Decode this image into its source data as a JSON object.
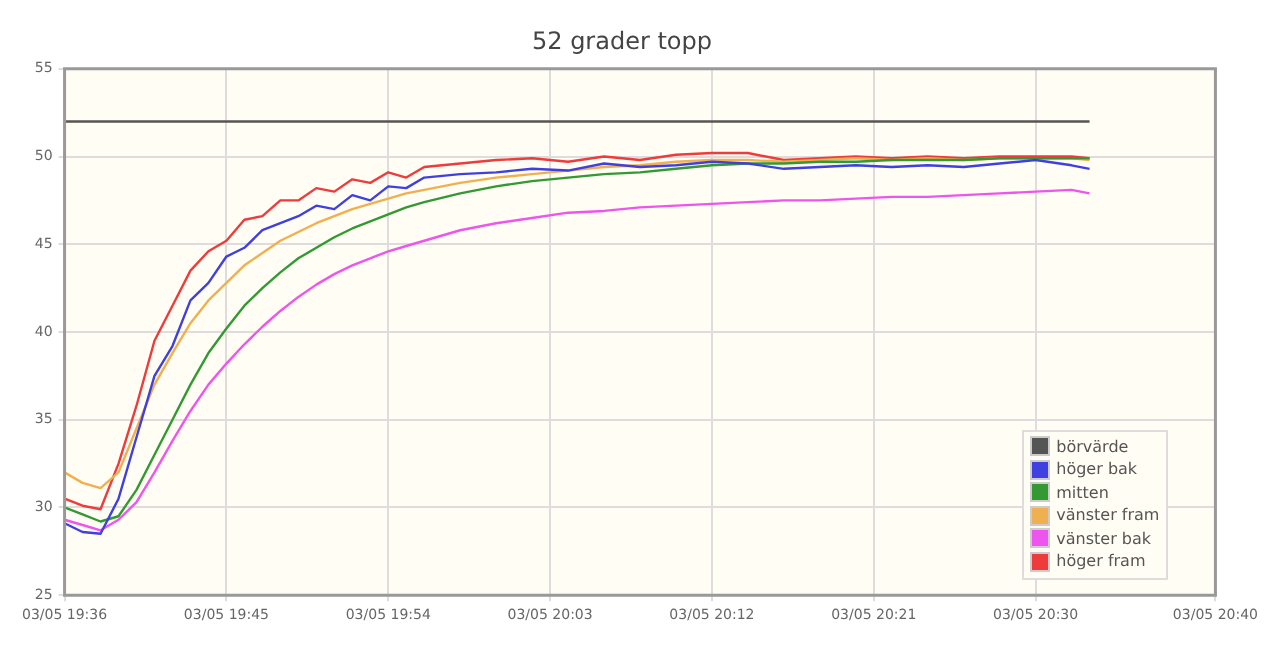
{
  "chart_data": {
    "type": "line",
    "title": "52 grader topp",
    "x": [
      "--05-03T19:36",
      "--05-03T19:37",
      "--05-03T19:38",
      "--05-03T19:39",
      "--05-03T19:40",
      "--05-03T19:41",
      "--05-03T19:42",
      "--05-03T19:43",
      "--05-03T19:44",
      "--05-03T19:45",
      "--05-03T19:46",
      "--05-03T19:47",
      "--05-03T19:48",
      "--05-03T19:49",
      "--05-03T19:50",
      "--05-03T19:51",
      "--05-03T19:52",
      "--05-03T19:53",
      "--05-03T19:54",
      "--05-03T19:55",
      "--05-03T19:56",
      "--05-03T19:58",
      "--05-03T20:00",
      "--05-03T20:02",
      "--05-03T20:04",
      "--05-03T20:06",
      "--05-03T20:08",
      "--05-03T20:10",
      "--05-03T20:12",
      "--05-03T20:14",
      "--05-03T20:16",
      "--05-03T20:18",
      "--05-03T20:20",
      "--05-03T20:22",
      "--05-03T20:24",
      "--05-03T20:26",
      "--05-03T20:28",
      "--05-03T20:30",
      "--05-03T20:32",
      "--05-03T20:33"
    ],
    "series": [
      {
        "name": "börvärde",
        "color": "#555555",
        "x": [
          "--05-03T19:36",
          "--05-03T20:33"
        ],
        "values": [
          52,
          52
        ]
      },
      {
        "name": "höger bak",
        "color": "#4040e0",
        "values": [
          29.1,
          28.6,
          28.5,
          30.5,
          34.0,
          37.5,
          39.2,
          41.8,
          42.8,
          44.3,
          44.8,
          45.8,
          46.2,
          46.6,
          47.2,
          47.0,
          47.8,
          47.5,
          48.3,
          48.2,
          48.8,
          49.0,
          49.1,
          49.3,
          49.2,
          49.6,
          49.4,
          49.5,
          49.7,
          49.6,
          49.3,
          49.4,
          49.5,
          49.4,
          49.5,
          49.4,
          49.6,
          49.8,
          49.5,
          49.3
        ]
      },
      {
        "name": "mitten",
        "color": "#339933",
        "values": [
          30.0,
          29.6,
          29.2,
          29.5,
          31.0,
          33.0,
          35.0,
          37.0,
          38.8,
          40.2,
          41.5,
          42.5,
          43.4,
          44.2,
          44.8,
          45.4,
          45.9,
          46.3,
          46.7,
          47.1,
          47.4,
          47.9,
          48.3,
          48.6,
          48.8,
          49.0,
          49.1,
          49.3,
          49.5,
          49.6,
          49.6,
          49.7,
          49.7,
          49.8,
          49.8,
          49.8,
          49.9,
          49.9,
          49.9,
          49.9
        ]
      },
      {
        "name": "vänster fram",
        "color": "#f0b050",
        "values": [
          32.0,
          31.4,
          31.1,
          32.0,
          34.5,
          37.0,
          38.8,
          40.5,
          41.8,
          42.8,
          43.8,
          44.5,
          45.2,
          45.7,
          46.2,
          46.6,
          47.0,
          47.3,
          47.6,
          47.9,
          48.1,
          48.5,
          48.8,
          49.0,
          49.2,
          49.4,
          49.5,
          49.7,
          49.8,
          49.8,
          49.7,
          49.8,
          49.9,
          49.8,
          49.9,
          49.8,
          49.9,
          49.9,
          49.9,
          49.8
        ]
      },
      {
        "name": "vänster bak",
        "color": "#ee55ee",
        "values": [
          29.3,
          29.0,
          28.7,
          29.3,
          30.3,
          32.0,
          33.8,
          35.5,
          37.0,
          38.2,
          39.3,
          40.3,
          41.2,
          42.0,
          42.7,
          43.3,
          43.8,
          44.2,
          44.6,
          44.9,
          45.2,
          45.8,
          46.2,
          46.5,
          46.8,
          46.9,
          47.1,
          47.2,
          47.3,
          47.4,
          47.5,
          47.5,
          47.6,
          47.7,
          47.7,
          47.8,
          47.9,
          48.0,
          48.1,
          47.9
        ]
      },
      {
        "name": "höger fram",
        "color": "#ee3b3b",
        "values": [
          30.5,
          30.1,
          29.9,
          32.5,
          35.8,
          39.5,
          41.5,
          43.5,
          44.6,
          45.2,
          46.4,
          46.6,
          47.5,
          47.5,
          48.2,
          48.0,
          48.7,
          48.5,
          49.1,
          48.8,
          49.4,
          49.6,
          49.8,
          49.9,
          49.7,
          50.0,
          49.8,
          50.1,
          50.2,
          50.2,
          49.8,
          49.9,
          50.0,
          49.9,
          50.0,
          49.9,
          50.0,
          50.0,
          50.0,
          49.9
        ]
      }
    ],
    "xlim": [
      "--05-03T19:36",
      "--05-03T20:40"
    ],
    "xticks": [
      {
        "value": "--05-03T19:36",
        "label": "03/05 19:36"
      },
      {
        "value": "--05-03T19:45",
        "label": "03/05 19:45"
      },
      {
        "value": "--05-03T19:54",
        "label": "03/05 19:54"
      },
      {
        "value": "--05-03T20:03",
        "label": "03/05 20:03"
      },
      {
        "value": "--05-03T20:12",
        "label": "03/05 20:12"
      },
      {
        "value": "--05-03T20:21",
        "label": "03/05 20:21"
      },
      {
        "value": "--05-03T20:30",
        "label": "03/05 20:30"
      },
      {
        "value": "--05-03T20:40",
        "label": "03/05 20:40"
      }
    ],
    "ylim": [
      25,
      55
    ],
    "yticks": [
      25,
      30,
      35,
      40,
      45,
      50,
      55
    ],
    "grid": true,
    "legend": "bottom right",
    "marker": "none",
    "line_style": "solid"
  }
}
